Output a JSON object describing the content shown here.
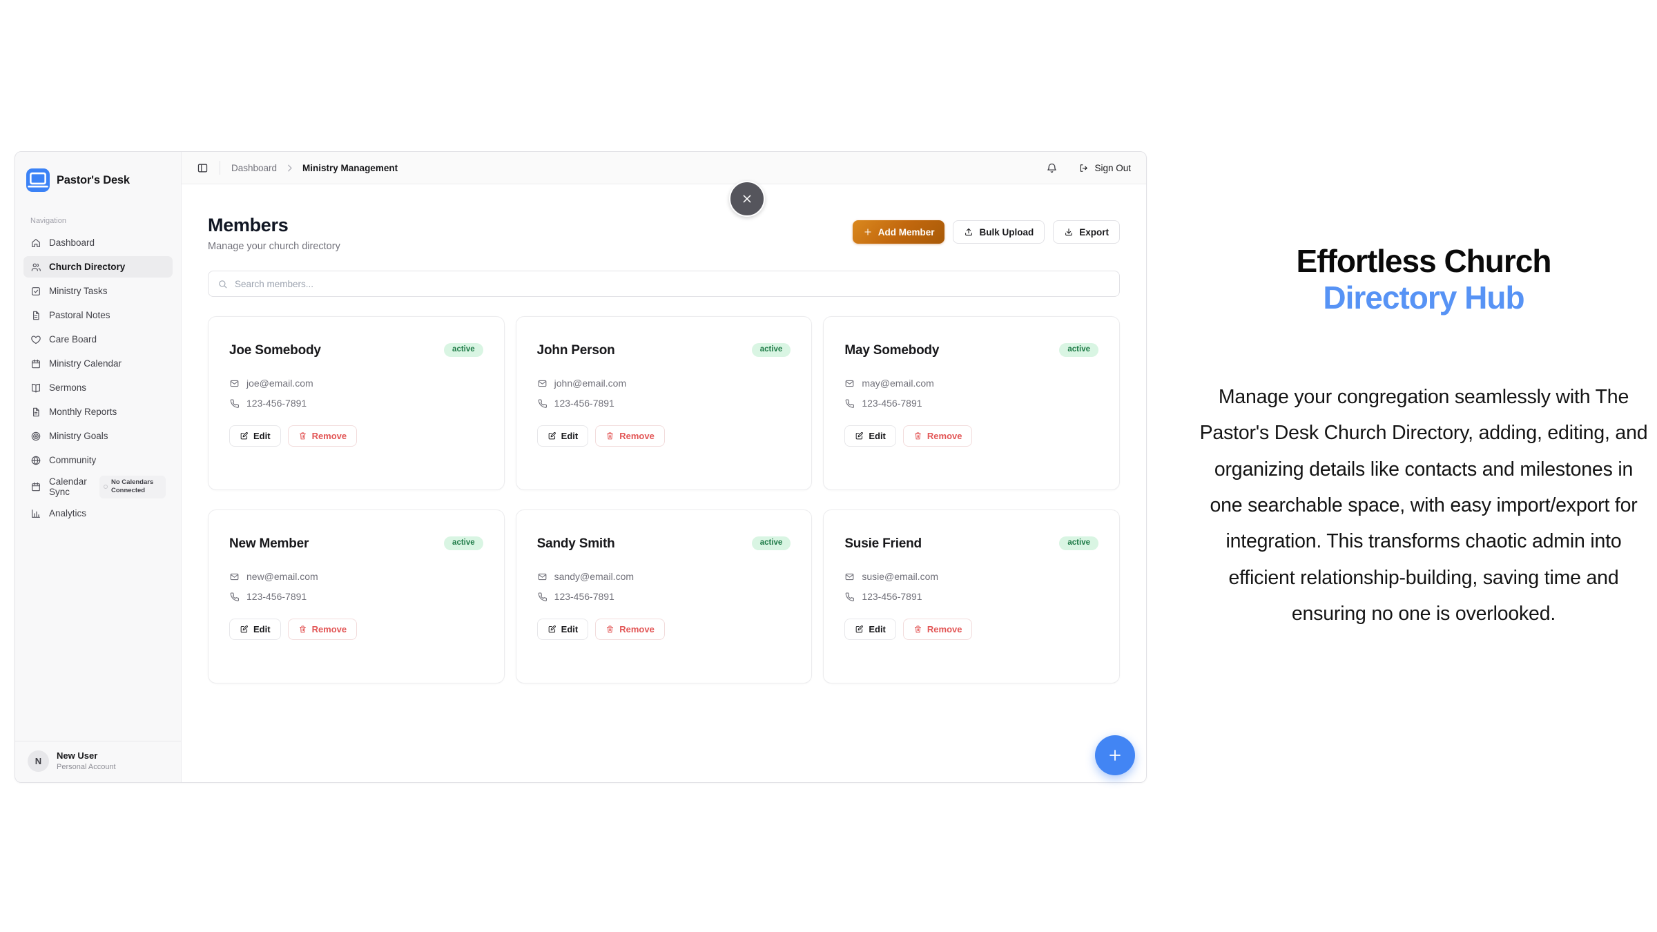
{
  "app": {
    "brand": "Pastor's Desk",
    "sidebar": {
      "section_label": "Navigation",
      "items": [
        {
          "label": "Dashboard",
          "icon": "home",
          "active": false
        },
        {
          "label": "Church Directory",
          "icon": "users",
          "active": true
        },
        {
          "label": "Ministry Tasks",
          "icon": "check-square",
          "active": false
        },
        {
          "label": "Pastoral Notes",
          "icon": "file-text",
          "active": false
        },
        {
          "label": "Care Board",
          "icon": "heart",
          "active": false
        },
        {
          "label": "Ministry Calendar",
          "icon": "calendar",
          "active": false
        },
        {
          "label": "Sermons",
          "icon": "book-open",
          "active": false
        },
        {
          "label": "Monthly Reports",
          "icon": "file-text",
          "active": false
        },
        {
          "label": "Ministry Goals",
          "icon": "target",
          "active": false
        },
        {
          "label": "Community",
          "icon": "globe",
          "active": false
        },
        {
          "label": "Calendar Sync",
          "icon": "calendar",
          "active": false,
          "badge": "No Calendars Connected"
        },
        {
          "label": "Analytics",
          "icon": "bar-chart",
          "active": false
        }
      ]
    },
    "user": {
      "initial": "N",
      "name": "New User",
      "account_type": "Personal Account"
    },
    "header": {
      "breadcrumb_parent": "Dashboard",
      "breadcrumb_current": "Ministry Management",
      "sign_out_label": "Sign Out"
    },
    "members_page": {
      "title": "Members",
      "subtitle": "Manage your church directory",
      "add_member_label": "Add Member",
      "bulk_upload_label": "Bulk Upload",
      "export_label": "Export",
      "search_placeholder": "Search members...",
      "edit_label": "Edit",
      "remove_label": "Remove",
      "members": [
        {
          "name": "Joe Somebody",
          "email": "joe@email.com",
          "phone": "123-456-7891",
          "status": "active"
        },
        {
          "name": "John Person",
          "email": "john@email.com",
          "phone": "123-456-7891",
          "status": "active"
        },
        {
          "name": "May Somebody",
          "email": "may@email.com",
          "phone": "123-456-7891",
          "status": "active"
        },
        {
          "name": "New Member",
          "email": "new@email.com",
          "phone": "123-456-7891",
          "status": "active"
        },
        {
          "name": "Sandy Smith",
          "email": "sandy@email.com",
          "phone": "123-456-7891",
          "status": "active"
        },
        {
          "name": "Susie Friend",
          "email": "susie@email.com",
          "phone": "123-456-7891",
          "status": "active"
        }
      ]
    }
  },
  "marketing": {
    "title_line1": "Effortless Church",
    "title_line2": "Directory Hub",
    "body": "Manage your congregation seamlessly with The Pastor's Desk Church Directory, adding, editing, and organizing details like contacts and milestones in one searchable space, with easy import/export for integration. This transforms chaotic admin into efficient relationship-building, saving time and ensuring no one is overlooked."
  },
  "colors": {
    "brand_blue": "#3b82f6",
    "heading_blue": "#5793f5",
    "primary_orange": "#c2680e",
    "active_badge_bg": "#d9f5e3",
    "active_badge_text": "#1d7a46",
    "danger_red": "#e25555",
    "fab_blue": "#4285f4",
    "close_gray": "#55555c"
  }
}
